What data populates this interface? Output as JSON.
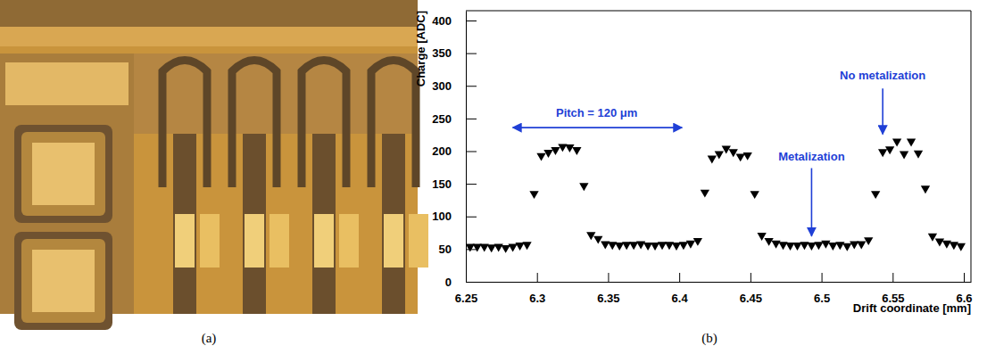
{
  "chart_data": {
    "type": "scatter",
    "x_label": "Drift coordinate [mm]",
    "y_label": "Charge [ADC]",
    "x": [
      6.253,
      6.258,
      6.263,
      6.268,
      6.273,
      6.278,
      6.283,
      6.288,
      6.293,
      6.298,
      6.303,
      6.308,
      6.313,
      6.318,
      6.323,
      6.328,
      6.333,
      6.338,
      6.343,
      6.348,
      6.353,
      6.358,
      6.363,
      6.368,
      6.373,
      6.378,
      6.383,
      6.388,
      6.393,
      6.398,
      6.403,
      6.408,
      6.413,
      6.418,
      6.423,
      6.428,
      6.433,
      6.438,
      6.443,
      6.448,
      6.453,
      6.458,
      6.463,
      6.468,
      6.473,
      6.478,
      6.483,
      6.488,
      6.493,
      6.498,
      6.503,
      6.508,
      6.513,
      6.518,
      6.523,
      6.528,
      6.533,
      6.538,
      6.543,
      6.548,
      6.553,
      6.558,
      6.563,
      6.568,
      6.573,
      6.578,
      6.583,
      6.588,
      6.593,
      6.598
    ],
    "values": [
      54,
      54,
      54,
      53,
      54,
      52,
      54,
      56,
      57,
      135,
      193,
      198,
      202,
      207,
      206,
      202,
      147,
      72,
      66,
      58,
      57,
      56,
      57,
      57,
      58,
      56,
      56,
      57,
      57,
      56,
      57,
      59,
      63,
      137,
      189,
      196,
      204,
      199,
      192,
      194,
      135,
      71,
      63,
      59,
      57,
      56,
      56,
      57,
      56,
      57,
      59,
      56,
      57,
      55,
      58,
      58,
      64,
      135,
      199,
      203,
      215,
      196,
      215,
      197,
      143,
      70,
      62,
      59,
      57,
      55
    ],
    "color": "#000000",
    "marker": "triangle-down",
    "xlim": [
      6.25,
      6.605
    ],
    "ylim": [
      0,
      415
    ],
    "xticks": [
      6.25,
      6.3,
      6.35,
      6.4,
      6.45,
      6.5,
      6.55,
      6.6
    ],
    "yticks": [
      0,
      50,
      100,
      150,
      200,
      250,
      300,
      350,
      400
    ],
    "annotations": [
      {
        "text": "Pitch = 120 μm",
        "x": 6.342,
        "y": 252,
        "x1": 6.283,
        "y1": 236,
        "x2": 6.402,
        "y2": 236,
        "arrow": "double",
        "color": "#1f3fd6"
      },
      {
        "text": "Metalization",
        "x": 6.493,
        "y": 186,
        "x1": 6.493,
        "y1": 174,
        "x2": 6.493,
        "y2": 70,
        "arrow": "end",
        "color": "#1f3fd6"
      },
      {
        "text": "No metalization",
        "x": 6.543,
        "y": 310,
        "x1": 6.543,
        "y1": 296,
        "x2": 6.543,
        "y2": 226,
        "arrow": "end",
        "color": "#1f3fd6"
      }
    ]
  },
  "panel_labels": [
    "(a)",
    "(b)"
  ]
}
